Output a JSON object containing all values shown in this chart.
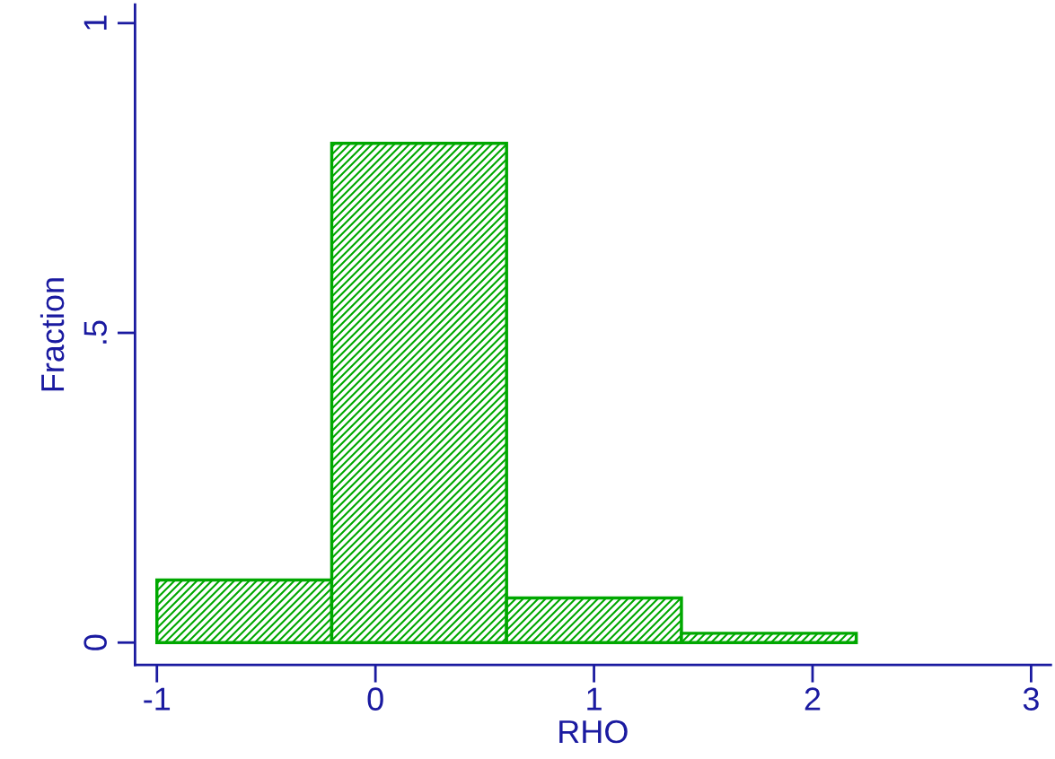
{
  "chart_data": {
    "type": "histogram",
    "xlabel": "RHO",
    "ylabel": "Fraction",
    "bins": [
      -1,
      -0.2,
      0.6,
      1.4,
      2.2
    ],
    "values": [
      0.101,
      0.806,
      0.072,
      0.015
    ],
    "color": "#00a800",
    "xlim": [
      -1.1,
      3.09
    ],
    "ylim": [
      -0.036,
      1.03
    ],
    "xticks": [
      -1,
      0,
      1,
      2,
      3
    ],
    "yticks": [
      0,
      {
        "value": 0.5,
        "label": ".5"
      },
      1
    ],
    "grid": false,
    "legend": false
  }
}
